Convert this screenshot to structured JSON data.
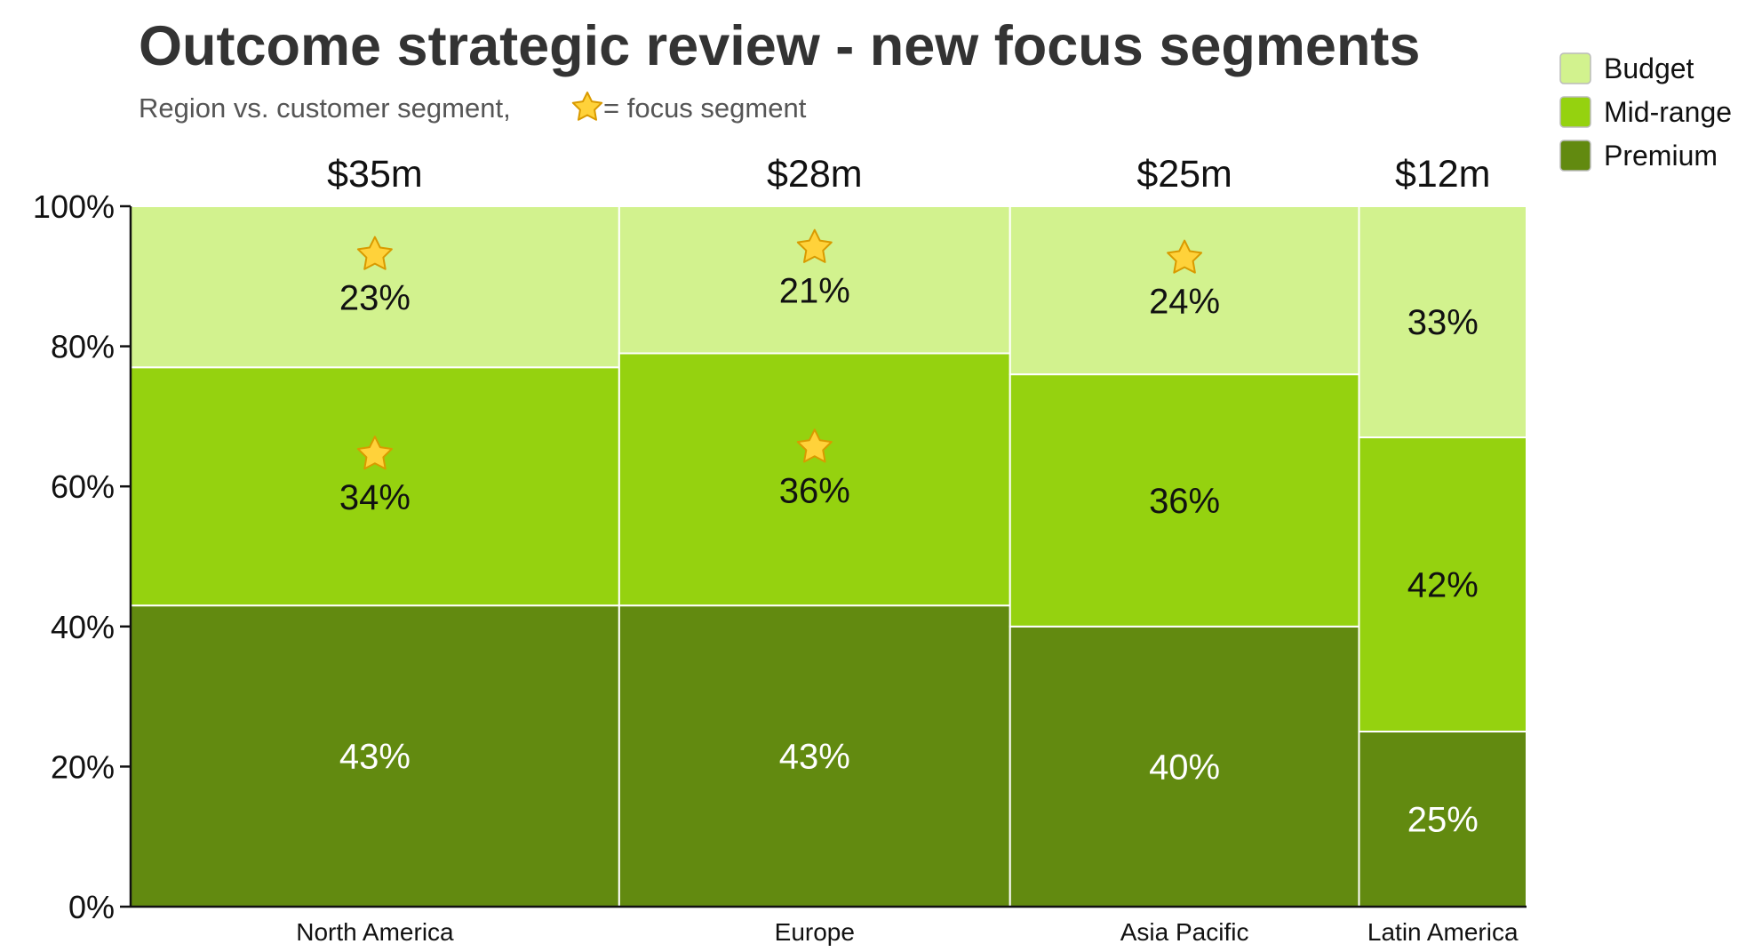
{
  "title": "Outcome strategic review - new focus segments",
  "subtitle_prefix": "Region vs. customer segment,",
  "subtitle_icon": "star-icon",
  "subtitle_suffix": "= focus segment",
  "colors": {
    "Budget": "#d2f28e",
    "Mid-range": "#95d20f",
    "Premium": "#628a10",
    "star_fill": "#ffd23a",
    "star_stroke": "#d99a00",
    "axis": "#111111"
  },
  "legend": {
    "placement": "top-right",
    "items": [
      "Budget",
      "Mid-range",
      "Premium"
    ]
  },
  "chart_data": {
    "type": "bar",
    "subtype": "marimekko",
    "categories": [
      "North America",
      "Europe",
      "Asia Pacific",
      "Latin America"
    ],
    "widths": [
      35,
      28,
      25,
      12
    ],
    "totals": [
      "$35m",
      "$28m",
      "$25m",
      "$12m"
    ],
    "y_tick_labels": [
      "0%",
      "20%",
      "40%",
      "60%",
      "80%",
      "100%"
    ],
    "ylim": [
      0,
      100
    ],
    "series": [
      {
        "name": "Premium",
        "values": [
          43,
          43,
          40,
          25
        ],
        "labels": [
          "43%",
          "43%",
          "40%",
          "25%"
        ],
        "focus": [
          false,
          false,
          false,
          false
        ]
      },
      {
        "name": "Mid-range",
        "values": [
          34,
          36,
          36,
          42
        ],
        "labels": [
          "34%",
          "36%",
          "36%",
          "42%"
        ],
        "focus": [
          true,
          true,
          false,
          false
        ]
      },
      {
        "name": "Budget",
        "values": [
          23,
          21,
          24,
          33
        ],
        "labels": [
          "23%",
          "21%",
          "24%",
          "33%"
        ],
        "focus": [
          true,
          true,
          true,
          false
        ]
      }
    ]
  }
}
